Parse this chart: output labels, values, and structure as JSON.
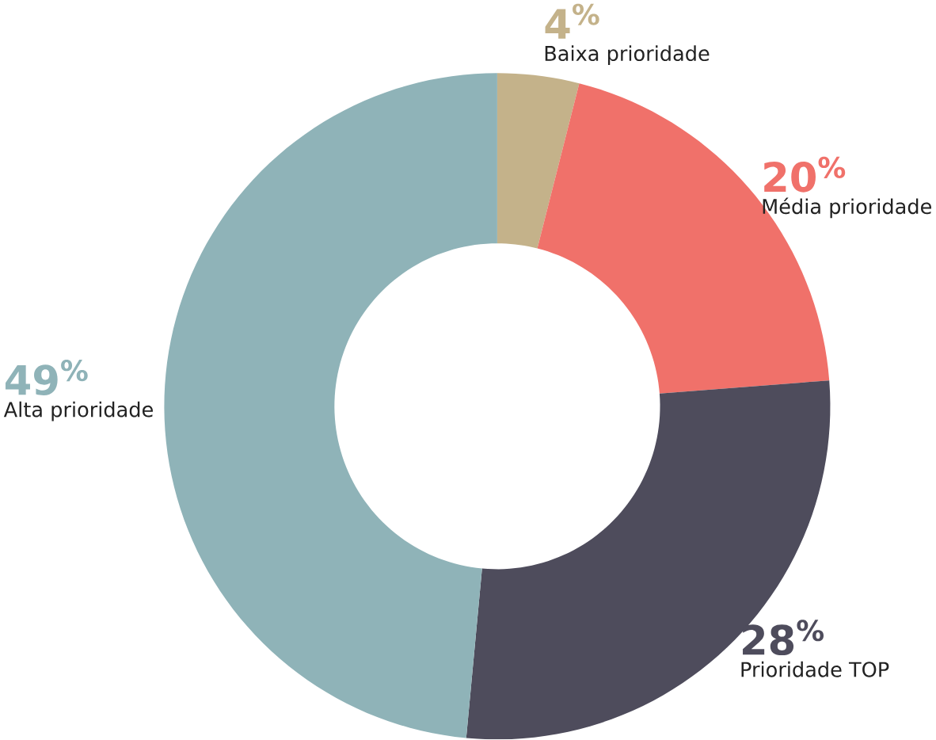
{
  "chart_data": {
    "type": "donut",
    "categories": [
      "Baixa prioridade",
      "Média prioridade",
      "Prioridade TOP",
      "Alta prioridade"
    ],
    "values": [
      4,
      20,
      28,
      49
    ],
    "colors": [
      "#c4b28a",
      "#f0716a",
      "#4e4c5c",
      "#8fb3b8"
    ],
    "value_labels": [
      "4$^{%}$",
      "20$^{%}$",
      "28$^{%}$",
      "49$^{%}$"
    ]
  }
}
